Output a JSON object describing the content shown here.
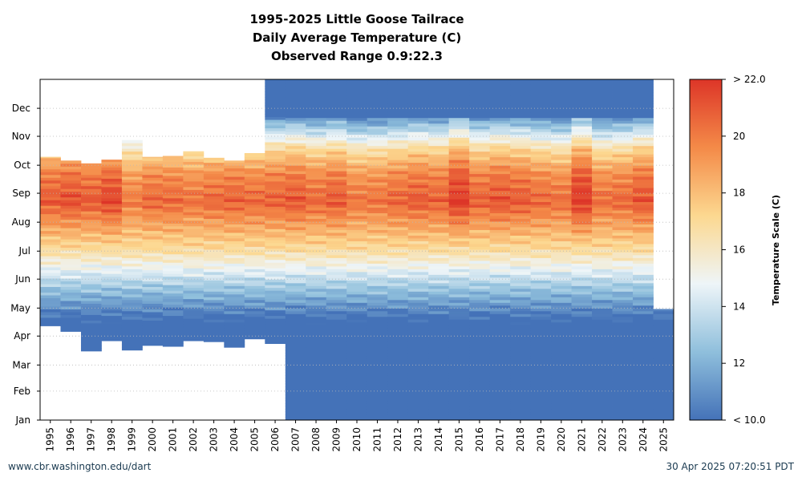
{
  "chart_data": {
    "type": "heatmap",
    "title": [
      "1995-2025 Little Goose Tailrace",
      "Daily Average Temperature (C)",
      "Observed Range 0.9:22.3"
    ],
    "x": [
      "1995",
      "1996",
      "1997",
      "1998",
      "1999",
      "2000",
      "2001",
      "2002",
      "2003",
      "2004",
      "2005",
      "2006",
      "2007",
      "2008",
      "2009",
      "2010",
      "2011",
      "2012",
      "2013",
      "2014",
      "2015",
      "2016",
      "2017",
      "2018",
      "2019",
      "2020",
      "2021",
      "2022",
      "2023",
      "2024",
      "2025"
    ],
    "y_labels": [
      "Jan",
      "Feb",
      "Mar",
      "Apr",
      "May",
      "Jun",
      "Jul",
      "Aug",
      "Sep",
      "Oct",
      "Nov",
      "Dec"
    ],
    "y_day_of_year": [
      1,
      32,
      60,
      91,
      121,
      152,
      182,
      213,
      244,
      274,
      305,
      335
    ],
    "y_range_days": [
      1,
      366
    ],
    "colorbar": {
      "label": "Temperature Scale (C)",
      "range": [
        10,
        22
      ],
      "tick_values": [
        10,
        12,
        14,
        16,
        18,
        20,
        22
      ],
      "tick_labels": [
        "< 10.0",
        "12",
        "14",
        "16",
        "18",
        "20",
        "> 22.0"
      ],
      "colors": [
        "#4472b8",
        "#8fbfdc",
        "#eef5f8",
        "#fcd890",
        "#f48a48",
        "#dd3528"
      ]
    },
    "grid": true,
    "legend": "colorbar-right",
    "coverage": [
      {
        "year": "1995",
        "start_day": 102,
        "end_day": 283,
        "peak": 21.0
      },
      {
        "year": "1996",
        "start_day": 96,
        "end_day": 279,
        "peak": 21.3
      },
      {
        "year": "1997",
        "start_day": 75,
        "end_day": 276,
        "peak": 21.0
      },
      {
        "year": "1998",
        "start_day": 86,
        "end_day": 280,
        "peak": 21.6
      },
      {
        "year": "1999",
        "start_day": 76,
        "end_day": 301,
        "peak": 20.0
      },
      {
        "year": "2000",
        "start_day": 81,
        "end_day": 283,
        "peak": 20.6
      },
      {
        "year": "2001",
        "start_day": 80,
        "end_day": 284,
        "peak": 20.6
      },
      {
        "year": "2002",
        "start_day": 86,
        "end_day": 289,
        "peak": 20.3
      },
      {
        "year": "2003",
        "start_day": 85,
        "end_day": 282,
        "peak": 20.6
      },
      {
        "year": "2004",
        "start_day": 79,
        "end_day": 279,
        "peak": 20.8
      },
      {
        "year": "2005",
        "start_day": 88,
        "end_day": 287,
        "peak": 20.6
      },
      {
        "year": "2006",
        "start_day": 83,
        "end_day": 366,
        "peak": 20.8
      },
      {
        "year": "2007",
        "start_day": 1,
        "end_day": 366,
        "peak": 21.1
      },
      {
        "year": "2008",
        "start_day": 1,
        "end_day": 366,
        "peak": 20.6
      },
      {
        "year": "2009",
        "start_day": 1,
        "end_day": 366,
        "peak": 21.0
      },
      {
        "year": "2010",
        "start_day": 1,
        "end_day": 366,
        "peak": 20.2
      },
      {
        "year": "2011",
        "start_day": 1,
        "end_day": 366,
        "peak": 20.3
      },
      {
        "year": "2012",
        "start_day": 1,
        "end_day": 366,
        "peak": 20.7
      },
      {
        "year": "2013",
        "start_day": 1,
        "end_day": 366,
        "peak": 21.0
      },
      {
        "year": "2014",
        "start_day": 1,
        "end_day": 366,
        "peak": 20.8
      },
      {
        "year": "2015",
        "start_day": 1,
        "end_day": 366,
        "peak": 22.0
      },
      {
        "year": "2016",
        "start_day": 1,
        "end_day": 366,
        "peak": 20.8
      },
      {
        "year": "2017",
        "start_day": 1,
        "end_day": 366,
        "peak": 21.2
      },
      {
        "year": "2018",
        "start_day": 1,
        "end_day": 366,
        "peak": 21.0
      },
      {
        "year": "2019",
        "start_day": 1,
        "end_day": 366,
        "peak": 20.6
      },
      {
        "year": "2020",
        "start_day": 1,
        "end_day": 366,
        "peak": 20.4
      },
      {
        "year": "2021",
        "start_day": 1,
        "end_day": 366,
        "peak": 22.0
      },
      {
        "year": "2022",
        "start_day": 1,
        "end_day": 366,
        "peak": 20.4
      },
      {
        "year": "2023",
        "start_day": 1,
        "end_day": 366,
        "peak": 20.6
      },
      {
        "year": "2024",
        "start_day": 1,
        "end_day": 366,
        "peak": 21.2
      },
      {
        "year": "2025",
        "start_day": 1,
        "end_day": 120,
        "peak": 10.0
      }
    ]
  },
  "footer": {
    "left": "www.cbr.washington.edu/dart",
    "right": "30 Apr 2025 07:20:51 PDT"
  }
}
